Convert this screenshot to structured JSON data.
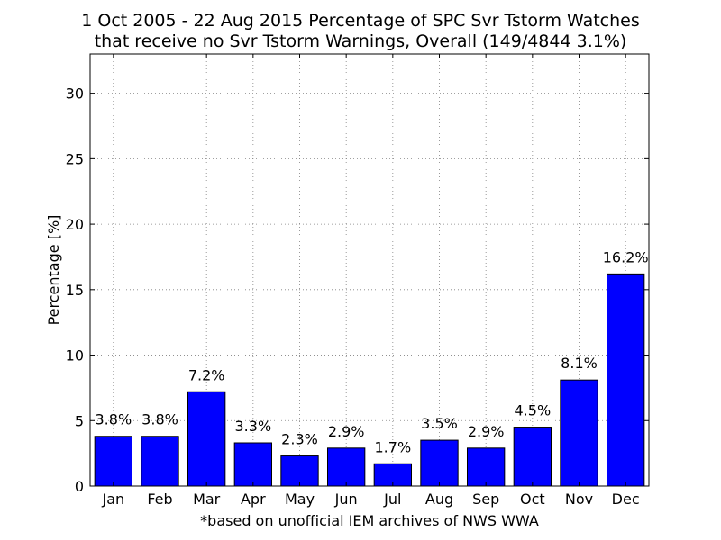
{
  "chart_data": {
    "type": "bar",
    "title_lines": [
      "1 Oct 2005 - 22 Aug 2015 Percentage of SPC Svr Tstorm Watches",
      "that receive no Svr Tstorm Warnings, Overall (149/4844 3.1%)"
    ],
    "xlabel": "*based on unofficial IEM archives of NWS WWA",
    "ylabel": "Percentage [%]",
    "categories": [
      "Jan",
      "Feb",
      "Mar",
      "Apr",
      "May",
      "Jun",
      "Jul",
      "Aug",
      "Sep",
      "Oct",
      "Nov",
      "Dec"
    ],
    "values": [
      3.8,
      3.8,
      7.2,
      3.3,
      2.3,
      2.9,
      1.7,
      3.5,
      2.9,
      4.5,
      8.1,
      16.2
    ],
    "data_labels": [
      "3.8%",
      "3.8%",
      "7.2%",
      "3.3%",
      "2.3%",
      "2.9%",
      "1.7%",
      "3.5%",
      "2.9%",
      "4.5%",
      "8.1%",
      "16.2%"
    ],
    "ylim": [
      0,
      33
    ],
    "yticks": [
      0,
      5,
      10,
      15,
      20,
      25,
      30
    ],
    "grid": true,
    "bar_color": "#0000ff",
    "edge_color": "#000000",
    "grid_color": "#808080"
  }
}
